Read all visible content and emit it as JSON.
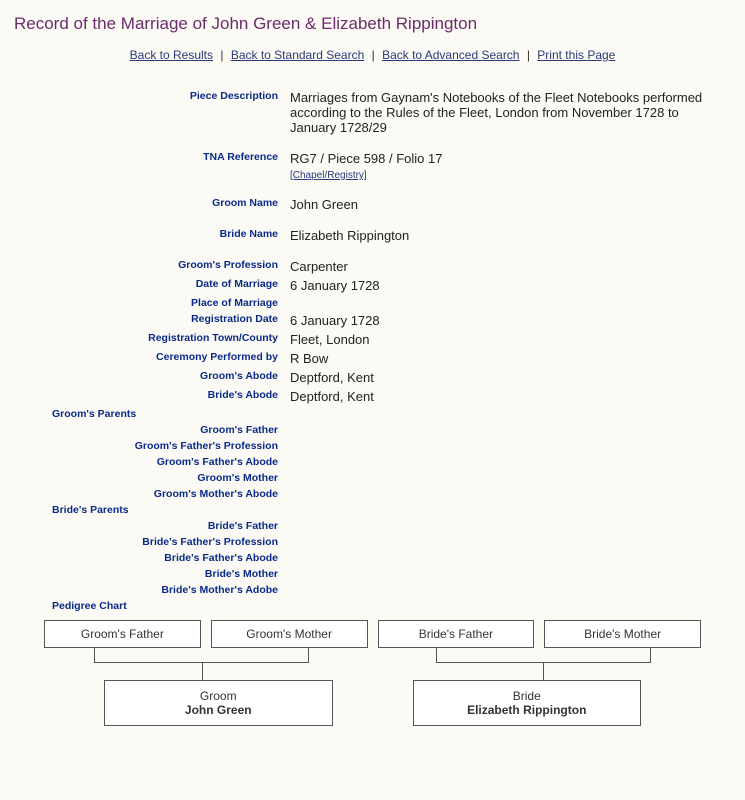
{
  "title": "Record of the Marriage of John Green & Elizabeth Rippington",
  "nav": {
    "back_results": "Back to Results",
    "back_standard": "Back to Standard Search",
    "back_advanced": "Back to Advanced Search",
    "print": "Print this Page",
    "sep": "|"
  },
  "labels": {
    "piece_description": "Piece Description",
    "tna_reference": "TNA Reference",
    "chapel_registry": "[Chapel/Registry]",
    "groom_name": "Groom Name",
    "bride_name": "Bride Name",
    "groom_profession": "Groom's Profession",
    "date_of_marriage": "Date of Marriage",
    "place_of_marriage": "Place of Marriage",
    "registration_date": "Registration Date",
    "registration_town": "Registration Town/County",
    "ceremony_by": "Ceremony Performed by",
    "groom_abode": "Groom's Abode",
    "bride_abode": "Bride's Abode",
    "groom_parents": "Groom's Parents",
    "groom_father": "Groom's Father",
    "groom_father_profession": "Groom's Father's Profession",
    "groom_father_abode": "Groom's Father's Abode",
    "groom_mother": "Groom's Mother",
    "groom_mother_abode": "Groom's Mother's Abode",
    "bride_parents": "Bride's Parents",
    "bride_father": "Bride's Father",
    "bride_father_profession": "Bride's Father's Profession",
    "bride_father_abode": "Bride's Father's Abode",
    "bride_mother": "Bride's Mother",
    "bride_mother_adobe": "Bride's Mother's Adobe",
    "pedigree_chart": "Pedigree Chart"
  },
  "values": {
    "piece_description": "Marriages from Gaynam's Notebooks of the Fleet Notebooks performed according to the Rules of the Fleet, London from November 1728 to January 1728/29",
    "tna_reference": "RG7 / Piece 598 / Folio 17",
    "groom_name": "John Green",
    "bride_name": "Elizabeth Rippington",
    "groom_profession": "Carpenter",
    "date_of_marriage": "6 January 1728",
    "place_of_marriage": "",
    "registration_date": "6 January 1728",
    "registration_town": "Fleet, London",
    "ceremony_by": "R Bow",
    "groom_abode": "Deptford, Kent",
    "bride_abode": "Deptford, Kent"
  },
  "pedigree": {
    "groom_father": "Groom's Father",
    "groom_mother": "Groom's Mother",
    "bride_father": "Bride's Father",
    "bride_mother": "Bride's Mother",
    "groom_role": "Groom",
    "groom_name": "John Green",
    "bride_role": "Bride",
    "bride_name": "Elizabeth Rippington"
  }
}
